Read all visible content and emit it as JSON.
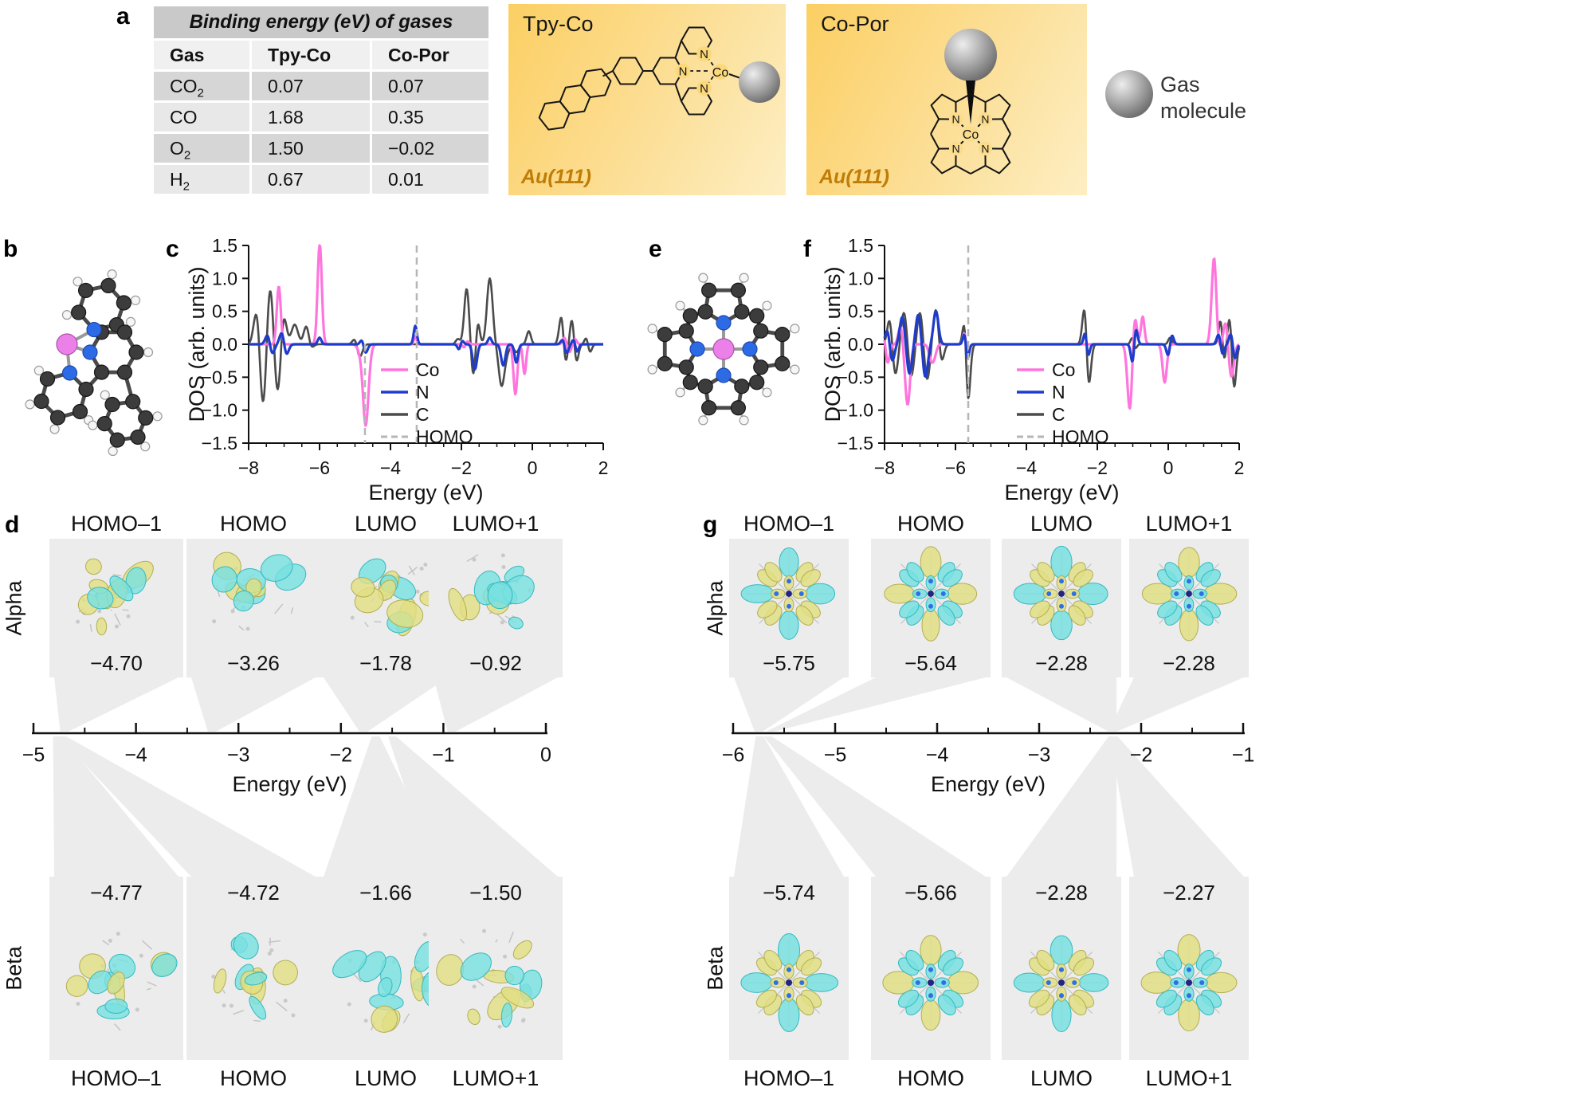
{
  "panel_labels": {
    "a": "a",
    "b": "b",
    "c": "c",
    "d": "d",
    "e": "e",
    "f": "f",
    "g": "g"
  },
  "binding_table": {
    "title": "Binding energy (eV) of gases",
    "headers": [
      "Gas",
      "Tpy-Co",
      "Co-Por"
    ],
    "rows": [
      {
        "gas": "CO",
        "sub": "2",
        "tpy_co": "0.07",
        "co_por": "0.07"
      },
      {
        "gas": "CO",
        "sub": "",
        "tpy_co": "1.68",
        "co_por": "0.35"
      },
      {
        "gas": "O",
        "sub": "2",
        "tpy_co": "1.50",
        "co_por": "−0.02"
      },
      {
        "gas": "H",
        "sub": "2",
        "tpy_co": "0.67",
        "co_por": "0.01"
      }
    ]
  },
  "schematics": {
    "tpy": {
      "title": "Tpy-Co",
      "substrate": "Au(111)",
      "metal_label": "Co",
      "n_label": "N"
    },
    "por": {
      "title": "Co-Por",
      "substrate": "Au(111)",
      "metal_label": "Co",
      "n_label": "N"
    },
    "gas_legend_line1": "Gas",
    "gas_legend_line2": "molecule"
  },
  "chart_data": [
    {
      "id": "dos_tpy_co",
      "panel": "c",
      "type": "line",
      "xlabel": "Energy (eV)",
      "ylabel": "DOS (arb. units)",
      "xlim": [
        -8,
        2
      ],
      "ylim": [
        -1.5,
        1.5
      ],
      "xticks": [
        -8,
        -6,
        -4,
        -2,
        0,
        2
      ],
      "yticks": [
        -1.5,
        -1,
        -0.5,
        0,
        0.5,
        1,
        1.5
      ],
      "legend": [
        {
          "label": "Co",
          "color": "#ff75dd",
          "dash": false
        },
        {
          "label": "N",
          "color": "#1d3ccc",
          "dash": false
        },
        {
          "label": "C",
          "color": "#4b4b4b",
          "dash": false
        },
        {
          "label": "HOMO",
          "color": "#b6b6b6",
          "dash": true
        }
      ],
      "homo_lines": [
        {
          "x": -3.26,
          "y1": 1.5,
          "y2": -1.5
        },
        {
          "x": -4.72,
          "y1": 0,
          "y2": -1.5
        }
      ],
      "series": [
        {
          "name": "C",
          "color": "#4b4b4b",
          "width": 2.6,
          "up": [
            [
              -7.75,
              0.7,
              0.09
            ],
            [
              -7.4,
              1.0,
              0.09
            ],
            [
              -7.05,
              0.85,
              0.09
            ],
            [
              -6.7,
              0.9,
              0.09
            ],
            [
              -6.35,
              0.45,
              0.08
            ],
            [
              -4.95,
              0.28,
              0.08
            ],
            [
              -2.1,
              0.5,
              0.06
            ],
            [
              -1.85,
              0.85,
              0.07
            ],
            [
              -1.55,
              0.45,
              0.06
            ],
            [
              -1.2,
              1.0,
              0.08
            ],
            [
              -0.8,
              1.02,
              0.08
            ],
            [
              -0.45,
              0.88,
              0.07
            ],
            [
              -0.1,
              0.2,
              0.06
            ],
            [
              0.85,
              0.85,
              0.07
            ],
            [
              1.15,
              0.78,
              0.07
            ],
            [
              1.55,
              0.2,
              0.06
            ],
            [
              1.95,
              0.5,
              0.07
            ]
          ],
          "down": [
            [
              -7.6,
              1.12,
              0.1
            ],
            [
              -7.15,
              1.08,
              0.1
            ],
            [
              -6.7,
              0.6,
              0.09
            ],
            [
              -6.3,
              0.25,
              0.08
            ],
            [
              -4.9,
              0.38,
              0.08
            ],
            [
              -2.1,
              0.42,
              0.06
            ],
            [
              -1.65,
              0.55,
              0.07
            ],
            [
              -0.82,
              1.55,
              0.09
            ],
            [
              -0.45,
              1.0,
              0.07
            ],
            [
              0.9,
              0.72,
              0.07
            ],
            [
              1.2,
              0.68,
              0.07
            ],
            [
              1.6,
              0.22,
              0.06
            ],
            [
              1.95,
              0.5,
              0.07
            ]
          ]
        },
        {
          "name": "Co",
          "color": "#ff75dd",
          "width": 3.2,
          "up": [
            [
              -7.15,
              0.88,
              0.055
            ],
            [
              -6.0,
              1.62,
              0.06
            ],
            [
              -4.78,
              0.72,
              0.07
            ],
            [
              -3.3,
              0.12,
              0.04
            ],
            [
              -1.85,
              0.08,
              0.05
            ],
            [
              -0.5,
              0.1,
              0.05
            ],
            [
              0.9,
              0.1,
              0.05
            ],
            [
              1.2,
              0.08,
              0.05
            ]
          ],
          "down": [
            [
              -6.05,
              0.15,
              0.05
            ],
            [
              -4.73,
              1.7,
              0.09
            ],
            [
              -1.9,
              0.08,
              0.05
            ],
            [
              -0.48,
              0.85,
              0.055
            ],
            [
              -0.22,
              0.45,
              0.045
            ],
            [
              1.05,
              0.12,
              0.05
            ]
          ]
        },
        {
          "name": "N",
          "color": "#1d3ccc",
          "width": 3.2,
          "up": [
            [
              -7.45,
              0.18,
              0.07
            ],
            [
              -7.05,
              0.22,
              0.07
            ],
            [
              -6.0,
              0.1,
              0.05
            ],
            [
              -4.78,
              0.32,
              0.06
            ],
            [
              -3.3,
              0.28,
              0.045
            ],
            [
              -2.0,
              0.1,
              0.05
            ],
            [
              -1.2,
              0.1,
              0.05
            ],
            [
              0.88,
              0.12,
              0.06
            ],
            [
              1.18,
              0.1,
              0.05
            ]
          ],
          "down": [
            [
              -7.35,
              0.18,
              0.07
            ],
            [
              -6.95,
              0.2,
              0.07
            ],
            [
              -4.75,
              0.33,
              0.07
            ],
            [
              -2.05,
              0.12,
              0.05
            ],
            [
              -1.62,
              0.38,
              0.06
            ],
            [
              -0.82,
              0.32,
              0.06
            ],
            [
              -0.45,
              0.28,
              0.05
            ],
            [
              0.95,
              0.18,
              0.06
            ],
            [
              1.25,
              0.14,
              0.05
            ]
          ]
        }
      ]
    },
    {
      "id": "dos_co_por",
      "panel": "f",
      "type": "line",
      "xlabel": "Energy (eV)",
      "ylabel": "DOS (arb. units)",
      "xlim": [
        -8,
        2
      ],
      "ylim": [
        -1.5,
        1.5
      ],
      "xticks": [
        -8,
        -6,
        -4,
        -2,
        0,
        2
      ],
      "yticks": [
        -1.5,
        -1,
        -0.5,
        0,
        0.5,
        1,
        1.5
      ],
      "legend": [
        {
          "label": "Co",
          "color": "#ff75dd",
          "dash": false
        },
        {
          "label": "N",
          "color": "#1d3ccc",
          "dash": false
        },
        {
          "label": "C",
          "color": "#4b4b4b",
          "dash": false
        },
        {
          "label": "HOMO",
          "color": "#b6b6b6",
          "dash": true
        }
      ],
      "homo_lines": [
        {
          "x": -5.64,
          "y1": 1.5,
          "y2": -1.5
        }
      ],
      "series": [
        {
          "name": "C",
          "color": "#4b4b4b",
          "width": 2.6,
          "up": [
            [
              -7.85,
              0.42,
              0.07
            ],
            [
              -7.45,
              0.5,
              0.08
            ],
            [
              -7.0,
              0.5,
              0.08
            ],
            [
              -6.55,
              0.55,
              0.08
            ],
            [
              -5.72,
              1.42,
              0.06
            ],
            [
              -2.32,
              1.6,
              0.07
            ],
            [
              -1.0,
              0.15,
              0.05
            ],
            [
              0.05,
              0.1,
              0.05
            ],
            [
              1.5,
              0.65,
              0.06
            ],
            [
              1.78,
              1.38,
              0.07
            ]
          ],
          "down": [
            [
              -7.7,
              0.48,
              0.08
            ],
            [
              -7.25,
              0.5,
              0.08
            ],
            [
              -6.8,
              0.55,
              0.08
            ],
            [
              -6.4,
              0.3,
              0.07
            ],
            [
              -5.68,
              1.65,
              0.07
            ],
            [
              -2.28,
              1.65,
              0.07
            ],
            [
              -0.95,
              0.12,
              0.05
            ],
            [
              1.55,
              0.55,
              0.06
            ],
            [
              1.82,
              1.6,
              0.07
            ]
          ]
        },
        {
          "name": "Co",
          "color": "#ff75dd",
          "width": 3.2,
          "up": [
            [
              -8.0,
              0.45,
              0.06
            ],
            [
              -7.55,
              0.28,
              0.06
            ],
            [
              -6.65,
              0.32,
              0.06
            ],
            [
              -5.72,
              0.38,
              0.05
            ],
            [
              -0.95,
              0.5,
              0.06
            ],
            [
              -0.72,
              0.42,
              0.05
            ],
            [
              1.3,
              1.42,
              0.07
            ],
            [
              1.62,
              0.35,
              0.06
            ]
          ],
          "down": [
            [
              -7.95,
              0.5,
              0.07
            ],
            [
              -7.35,
              0.92,
              0.07
            ],
            [
              -6.65,
              0.6,
              0.07
            ],
            [
              -5.68,
              0.4,
              0.05
            ],
            [
              -1.08,
              1.02,
              0.07
            ],
            [
              -0.1,
              0.58,
              0.06
            ],
            [
              1.38,
              0.3,
              0.06
            ],
            [
              1.78,
              0.5,
              0.07
            ]
          ]
        },
        {
          "name": "N",
          "color": "#1d3ccc",
          "width": 3.2,
          "up": [
            [
              -7.9,
              0.28,
              0.07
            ],
            [
              -7.5,
              0.42,
              0.07
            ],
            [
              -7.05,
              0.45,
              0.07
            ],
            [
              -6.55,
              0.5,
              0.07
            ],
            [
              -5.72,
              0.35,
              0.05
            ],
            [
              -2.32,
              0.35,
              0.05
            ],
            [
              -0.92,
              0.28,
              0.05
            ],
            [
              0.1,
              0.15,
              0.05
            ],
            [
              1.45,
              0.3,
              0.06
            ],
            [
              1.8,
              0.35,
              0.06
            ]
          ],
          "down": [
            [
              -7.8,
              0.32,
              0.07
            ],
            [
              -7.3,
              0.45,
              0.07
            ],
            [
              -6.85,
              0.5,
              0.07
            ],
            [
              -5.68,
              0.4,
              0.05
            ],
            [
              -2.28,
              0.35,
              0.05
            ],
            [
              -1.0,
              0.32,
              0.05
            ],
            [
              0.0,
              0.18,
              0.05
            ],
            [
              1.5,
              0.3,
              0.06
            ],
            [
              1.85,
              0.4,
              0.06
            ]
          ]
        }
      ]
    },
    {
      "id": "mo_tpy_co",
      "panel": "d",
      "type": "mo_levels",
      "style": "cluster",
      "xlabel": "Energy (eV)",
      "xlim": [
        -5,
        0
      ],
      "xticks": [
        -5,
        -4,
        -3,
        -2,
        -1,
        0
      ],
      "alpha_label": "Alpha",
      "beta_label": "Beta",
      "alpha": [
        {
          "orbital": "HOMO–1",
          "energy": -4.7,
          "text": "−4.70"
        },
        {
          "orbital": "HOMO",
          "energy": -3.26,
          "text": "−3.26"
        },
        {
          "orbital": "LUMO",
          "energy": -1.78,
          "text": "−1.78"
        },
        {
          "orbital": "LUMO+1",
          "energy": -0.92,
          "text": "−0.92"
        }
      ],
      "beta": [
        {
          "orbital": "HOMO–1",
          "energy": -4.77,
          "text": "−4.77"
        },
        {
          "orbital": "HOMO",
          "energy": -4.72,
          "text": "−4.72"
        },
        {
          "orbital": "LUMO",
          "energy": -1.66,
          "text": "−1.66"
        },
        {
          "orbital": "LUMO+1",
          "energy": -1.5,
          "text": "−1.50"
        }
      ]
    },
    {
      "id": "mo_co_por",
      "panel": "g",
      "type": "mo_levels",
      "style": "flower",
      "xlabel": "Energy (eV)",
      "xlim": [
        -6,
        -1
      ],
      "xticks": [
        -6,
        -5,
        -4,
        -3,
        -2,
        -1
      ],
      "alpha_label": "Alpha",
      "beta_label": "Beta",
      "alpha": [
        {
          "orbital": "HOMO–1",
          "energy": -5.75,
          "text": "−5.75"
        },
        {
          "orbital": "HOMO",
          "energy": -5.64,
          "text": "−5.64"
        },
        {
          "orbital": "LUMO",
          "energy": -2.28,
          "text": "−2.28"
        },
        {
          "orbital": "LUMO+1",
          "energy": -2.28,
          "text": "−2.28"
        }
      ],
      "beta": [
        {
          "orbital": "HOMO–1",
          "energy": -5.74,
          "text": "−5.74"
        },
        {
          "orbital": "HOMO",
          "energy": -5.66,
          "text": "−5.66"
        },
        {
          "orbital": "LUMO",
          "energy": -2.28,
          "text": "−2.28"
        },
        {
          "orbital": "LUMO+1",
          "energy": -2.27,
          "text": "−2.27"
        }
      ]
    }
  ]
}
